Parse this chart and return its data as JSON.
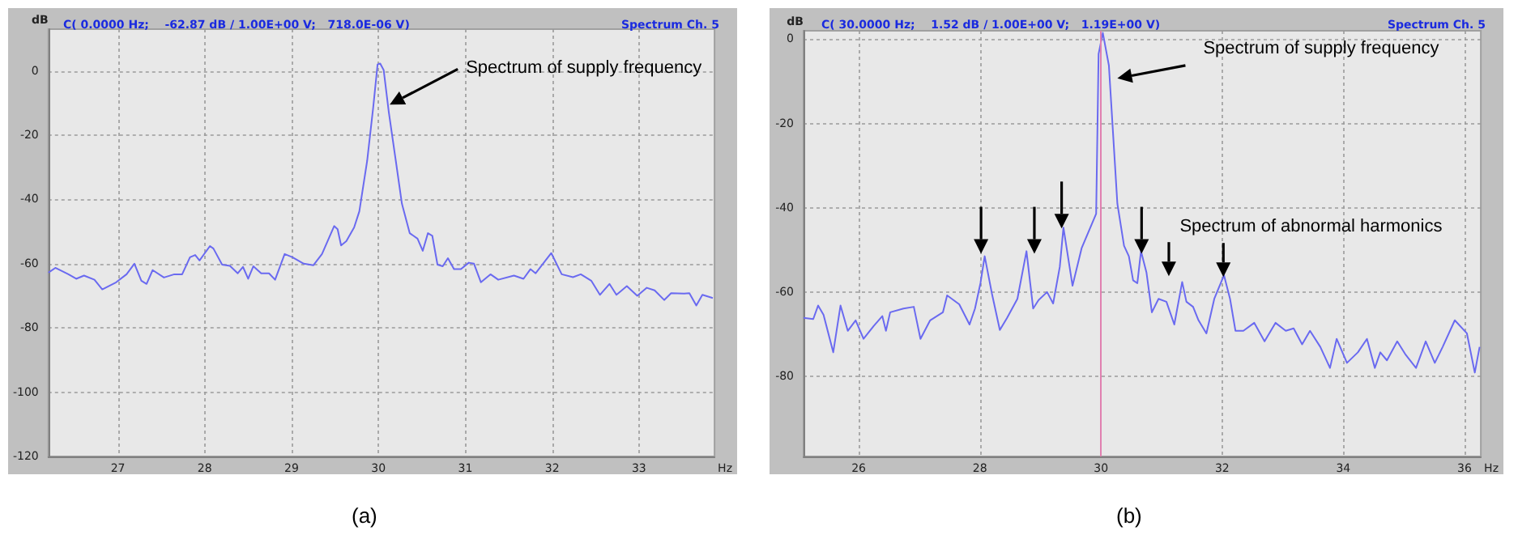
{
  "chart_data": [
    {
      "type": "line",
      "title": "Spectrum Ch. 5",
      "subtitle": "C( 0.0000 Hz;    -62.87 dB / 1.00E+00 V;   718.0E-06 V)",
      "xlabel": "Hz",
      "ylabel": "dB",
      "xlim": [
        26.2,
        33.87
      ],
      "ylim": [
        -120,
        13
      ],
      "xticks": [
        27,
        28,
        29,
        30,
        31,
        32,
        33
      ],
      "yticks": [
        0,
        -20,
        -40,
        -60,
        -80,
        -100,
        -120
      ],
      "grid": true,
      "marker": "none",
      "line_style": "solid",
      "series": [
        {
          "color": "#6a6af0",
          "x": [
            26.2,
            26.28,
            26.43,
            26.52,
            26.61,
            26.73,
            26.82,
            26.98,
            27.1,
            27.19,
            27.27,
            27.33,
            27.4,
            27.53,
            27.65,
            27.74,
            27.83,
            27.89,
            27.94,
            28.06,
            28.1,
            28.2,
            28.29,
            28.38,
            28.44,
            28.5,
            28.56,
            28.65,
            28.74,
            28.81,
            28.92,
            29.01,
            29.14,
            29.25,
            29.35,
            29.49,
            29.53,
            29.57,
            29.63,
            29.72,
            29.78,
            29.87,
            29.94,
            29.99,
            30.02,
            30.06,
            30.12,
            30.2,
            30.27,
            30.36,
            30.45,
            30.51,
            30.57,
            30.62,
            30.68,
            30.74,
            30.8,
            30.87,
            30.95,
            31.04,
            31.1,
            31.18,
            31.29,
            31.38,
            31.56,
            31.67,
            31.75,
            31.81,
            31.99,
            32.11,
            32.24,
            32.33,
            32.45,
            32.55,
            32.66,
            32.74,
            32.86,
            32.98,
            33.09,
            33.18,
            33.29,
            33.37,
            33.52,
            33.58,
            33.66,
            33.73,
            33.85
          ],
          "values": [
            -62.8,
            -61.3,
            -63.3,
            -64.7,
            -63.7,
            -65,
            -68,
            -65.8,
            -63.3,
            -60,
            -65.3,
            -66.3,
            -62,
            -64.3,
            -63.3,
            -63.3,
            -58,
            -57.3,
            -59,
            -54.5,
            -55.3,
            -60.3,
            -60.7,
            -63,
            -61,
            -64.7,
            -60.8,
            -63,
            -63,
            -65,
            -57,
            -58,
            -60,
            -60.5,
            -57,
            -48.3,
            -49.3,
            -54.3,
            -53,
            -48.7,
            -43.7,
            -28,
            -11.3,
            2,
            2.3,
            0.3,
            -13,
            -28,
            -41.3,
            -50.5,
            -52.2,
            -56,
            -50.5,
            -51.3,
            -60.3,
            -60.8,
            -58.3,
            -61.7,
            -61.7,
            -59.7,
            -60,
            -65.8,
            -63.3,
            -65,
            -63.7,
            -64.7,
            -61.7,
            -63,
            -56.7,
            -63.3,
            -64.2,
            -63.3,
            -65.3,
            -69.7,
            -66.3,
            -69.7,
            -67,
            -70,
            -67.5,
            -68.3,
            -71.3,
            -69.2,
            -69.3,
            -69.2,
            -73,
            -69.7,
            -70.7
          ]
        }
      ],
      "annotations": [
        {
          "text": "Spectrum of supply frequency",
          "x": 30.13,
          "y": -10.5
        },
        "(a)"
      ]
    },
    {
      "type": "line",
      "title": "Spectrum Ch. 5",
      "subtitle": "C( 30.0000 Hz;    1.52 dB / 1.00E+00 V;   1.19E+00 V)",
      "xlabel": "Hz",
      "ylabel": "dB",
      "xlim": [
        25.09,
        36.27
      ],
      "ylim": [
        -99,
        2
      ],
      "xticks": [
        26,
        28,
        30,
        32,
        34,
        36
      ],
      "yticks": [
        0,
        -20,
        -40,
        -60,
        -80
      ],
      "grid": true,
      "marker": "none",
      "line_style": "solid",
      "ref_lines": [
        {
          "axis": "x",
          "value": 30,
          "color": "#e080b0"
        }
      ],
      "series": [
        {
          "color": "#6a6af0",
          "x": [
            25.09,
            25.25,
            25.33,
            25.42,
            25.58,
            25.7,
            25.82,
            25.95,
            26.08,
            26.25,
            26.39,
            26.45,
            26.52,
            26.74,
            26.91,
            27.02,
            27.18,
            27.39,
            27.46,
            27.66,
            27.83,
            27.92,
            28.01,
            28.08,
            28.2,
            28.33,
            28.45,
            28.62,
            28.77,
            28.88,
            28.97,
            29.11,
            29.21,
            29.32,
            29.38,
            29.53,
            29.68,
            29.92,
            29.96,
            30.03,
            30.13,
            30.2,
            30.27,
            30.38,
            30.46,
            30.53,
            30.6,
            30.66,
            30.75,
            30.84,
            30.95,
            31.08,
            31.21,
            31.34,
            31.41,
            31.52,
            31.61,
            31.74,
            31.87,
            32.03,
            32.13,
            32.22,
            32.35,
            32.53,
            32.7,
            32.88,
            33.05,
            33.18,
            33.32,
            33.45,
            33.62,
            33.78,
            33.89,
            34.06,
            34.24,
            34.39,
            34.52,
            34.61,
            34.72,
            34.89,
            35.03,
            35.2,
            35.36,
            35.51,
            35.64,
            35.84,
            36.04,
            36.17,
            36.25
          ],
          "values": [
            -66.1,
            -66.4,
            -63.2,
            -65.4,
            -74.3,
            -63.2,
            -69.2,
            -66.7,
            -71.1,
            -68,
            -65.7,
            -69.2,
            -64.8,
            -63.9,
            -63.5,
            -71.1,
            -66.7,
            -64.8,
            -60.8,
            -62.9,
            -67.7,
            -63.9,
            -57.9,
            -51.5,
            -60.4,
            -69,
            -66.1,
            -61.6,
            -50.3,
            -63.9,
            -61.9,
            -60,
            -62.7,
            -54,
            -44.7,
            -58.5,
            -49.6,
            -41.4,
            -3.5,
            1.5,
            -6.2,
            -22.6,
            -39,
            -49,
            -51.5,
            -57.2,
            -57.9,
            -50.3,
            -55.3,
            -64.8,
            -61.6,
            -62.3,
            -67.7,
            -57.6,
            -62.3,
            -63.5,
            -66.7,
            -69.8,
            -61.6,
            -56,
            -61.6,
            -69.2,
            -69.2,
            -67.3,
            -71.7,
            -67.3,
            -69.2,
            -68.6,
            -72.4,
            -69.2,
            -73,
            -78,
            -71.1,
            -76.8,
            -74.3,
            -71.1,
            -78,
            -74.3,
            -76.2,
            -71.7,
            -74.9,
            -78,
            -71.7,
            -76.8,
            -73,
            -66.7,
            -69.8,
            -79.1,
            -73
          ]
        }
      ],
      "annotations": [
        {
          "text": "Spectrum of supply frequency",
          "x": 30.27,
          "y": -9.3
        },
        "Spectrum of abnormal harmonics",
        "(b)"
      ]
    }
  ]
}
